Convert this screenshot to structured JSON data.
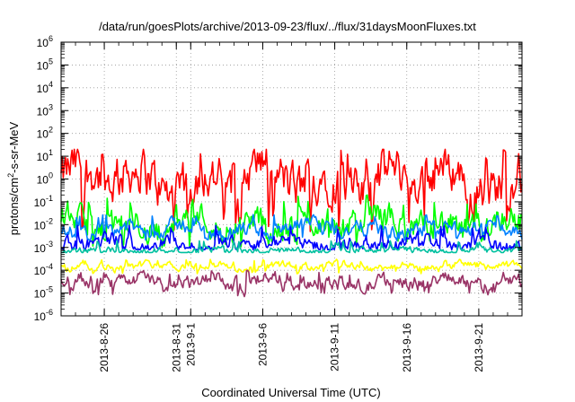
{
  "chart_data": {
    "type": "line",
    "title": "/data/run/goesPlots/archive/2013-09-23/flux/../flux/31daysMoonFluxes.txt",
    "xlabel": "Coordinated Universal Time (UTC)",
    "ylabel": {
      "prefix": "protons/cm",
      "sup": "2",
      "suffix": "-s-sr-MeV"
    },
    "y_scale": "log",
    "ylim_exponents": [
      -6,
      6
    ],
    "y_ticks": [
      {
        "base": "10",
        "exp": "6"
      },
      {
        "base": "10",
        "exp": "5"
      },
      {
        "base": "10",
        "exp": "4"
      },
      {
        "base": "10",
        "exp": "3"
      },
      {
        "base": "10",
        "exp": "2"
      },
      {
        "base": "10",
        "exp": "1"
      },
      {
        "base": "10",
        "exp": "0"
      },
      {
        "base": "10",
        "exp": "-1"
      },
      {
        "base": "10",
        "exp": "-2"
      },
      {
        "base": "10",
        "exp": "-3"
      },
      {
        "base": "10",
        "exp": "-4"
      },
      {
        "base": "10",
        "exp": "-5"
      },
      {
        "base": "10",
        "exp": "-6"
      }
    ],
    "xlim": [
      "2013-08-23",
      "2013-09-24"
    ],
    "x_ticks": [
      {
        "date": "2013-08-26",
        "label": "2013-8-26"
      },
      {
        "date": "2013-08-31",
        "label": "2013-8-31"
      },
      {
        "date": "2013-09-01",
        "label": "2013-9-1"
      },
      {
        "date": "2013-09-06",
        "label": "2013-9-6"
      },
      {
        "date": "2013-09-11",
        "label": "2013-9-11"
      },
      {
        "date": "2013-09-16",
        "label": "2013-9-16"
      },
      {
        "date": "2013-09-21",
        "label": "2013-9-21"
      }
    ],
    "grid": true,
    "legend": "none",
    "series": [
      {
        "color": "#ff0000",
        "y_median": 1.0,
        "y_min": 0.005,
        "y_max": 20
      },
      {
        "color": "#00ff00",
        "y_median": 0.01,
        "y_min": 0.001,
        "y_max": 0.2
      },
      {
        "color": "#0080ff",
        "y_median": 0.006,
        "y_min": 0.002,
        "y_max": 0.03
      },
      {
        "color": "#0000ff",
        "y_median": 0.0015,
        "y_min": 0.0008,
        "y_max": 0.01
      },
      {
        "color": "#00c0a0",
        "y_median": 0.0007,
        "y_min": 0.0006,
        "y_max": 0.002
      },
      {
        "color": "#ffff00",
        "y_median": 0.00015,
        "y_min": 7e-05,
        "y_max": 0.0003
      },
      {
        "color": "#993366",
        "y_median": 3e-05,
        "y_min": 7e-06,
        "y_max": 0.0001
      }
    ]
  }
}
